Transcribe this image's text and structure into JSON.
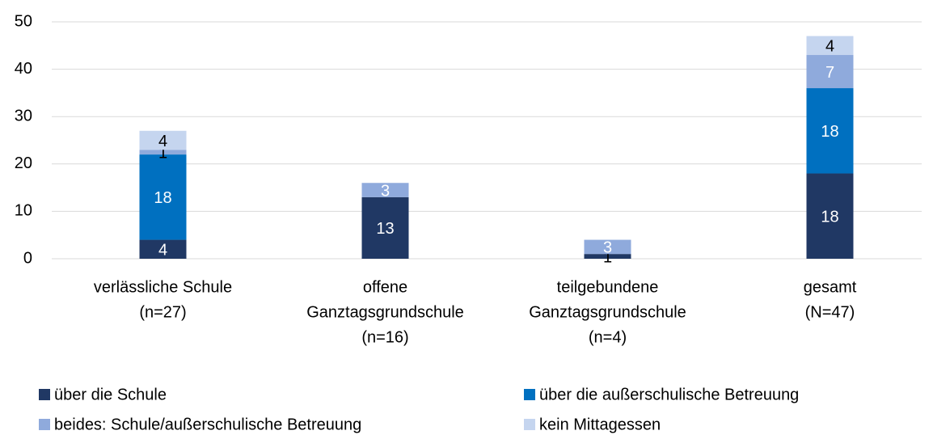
{
  "chart_data": {
    "type": "stacked_bar",
    "categories": [
      [
        "verlässliche Schule",
        "(n=27)"
      ],
      [
        "offene",
        "Ganztagsgrundschule",
        "(n=16)"
      ],
      [
        "teilgebundene",
        "Ganztagsgrundschule",
        "(n=4)"
      ],
      [
        "gesamt",
        "(N=47)"
      ]
    ],
    "series": [
      {
        "name": "über die Schule",
        "color": "#203864",
        "values": [
          4,
          13,
          1,
          18
        ]
      },
      {
        "name": "über die außerschulische Betreuung",
        "color": "#0070c0",
        "values": [
          18,
          null,
          null,
          18
        ]
      },
      {
        "name": "beides: Schule/außerschulische Betreuung",
        "color": "#8faadc",
        "values": [
          1,
          3,
          3,
          7
        ]
      },
      {
        "name": "kein Mittagessen",
        "color": "#c5d5ef",
        "values": [
          4,
          null,
          null,
          4
        ]
      }
    ],
    "ylim": [
      0,
      50
    ],
    "yticks": [
      0,
      10,
      20,
      30,
      40,
      50
    ],
    "grid": true,
    "legend": "bottom"
  }
}
